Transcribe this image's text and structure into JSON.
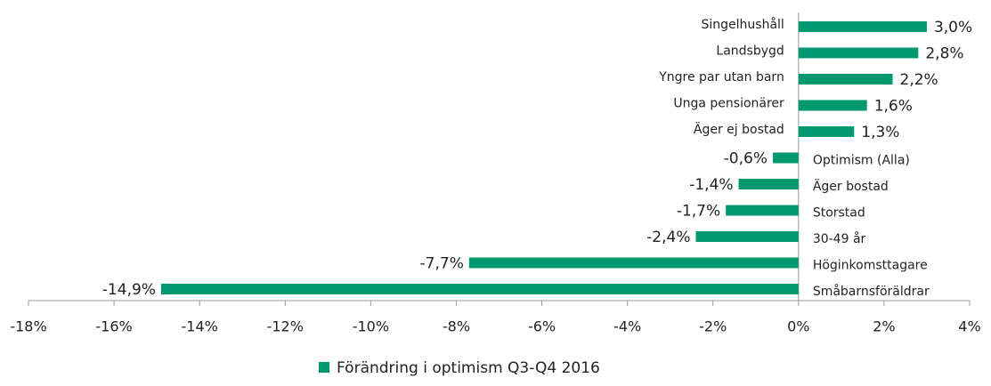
{
  "chart_data": {
    "type": "barh",
    "categories": [
      "Singelhushåll",
      "Landsbygd",
      "Yngre par utan barn",
      "Unga pensionärer",
      "Äger ej bostad",
      "Optimism (Alla)",
      "Äger bostad",
      "Storstad",
      "30-49 år",
      "Höginkomsttagare",
      "Småbarnsföräldrar"
    ],
    "series": [
      {
        "name": "Förändring i optimism Q3-Q4 2016",
        "color": "#00996f",
        "values": [
          3.0,
          2.8,
          2.2,
          1.6,
          1.3,
          -0.6,
          -1.4,
          -1.7,
          -2.4,
          -7.7,
          -14.9
        ],
        "value_labels": [
          "3,0%",
          "2,8%",
          "2,2%",
          "1,6%",
          "1,3%",
          "-0,6%",
          "-1,4%",
          "-1,7%",
          "-2,4%",
          "-7,7%",
          "-14,9%"
        ]
      }
    ],
    "xlim": [
      -18,
      4
    ],
    "xticks": [
      {
        "value": -18,
        "label": "-18%"
      },
      {
        "value": -16,
        "label": "-16%"
      },
      {
        "value": -14,
        "label": "-14%"
      },
      {
        "value": -12,
        "label": "-12%"
      },
      {
        "value": -10,
        "label": "-10%"
      },
      {
        "value": -8,
        "label": "-8%"
      },
      {
        "value": -6,
        "label": "-6%"
      },
      {
        "value": -4,
        "label": "-4%"
      },
      {
        "value": -2,
        "label": "-2%"
      },
      {
        "value": 0,
        "label": "0%"
      },
      {
        "value": 2,
        "label": "2%"
      },
      {
        "value": 4,
        "label": "4%"
      }
    ],
    "legend": "bottom"
  }
}
